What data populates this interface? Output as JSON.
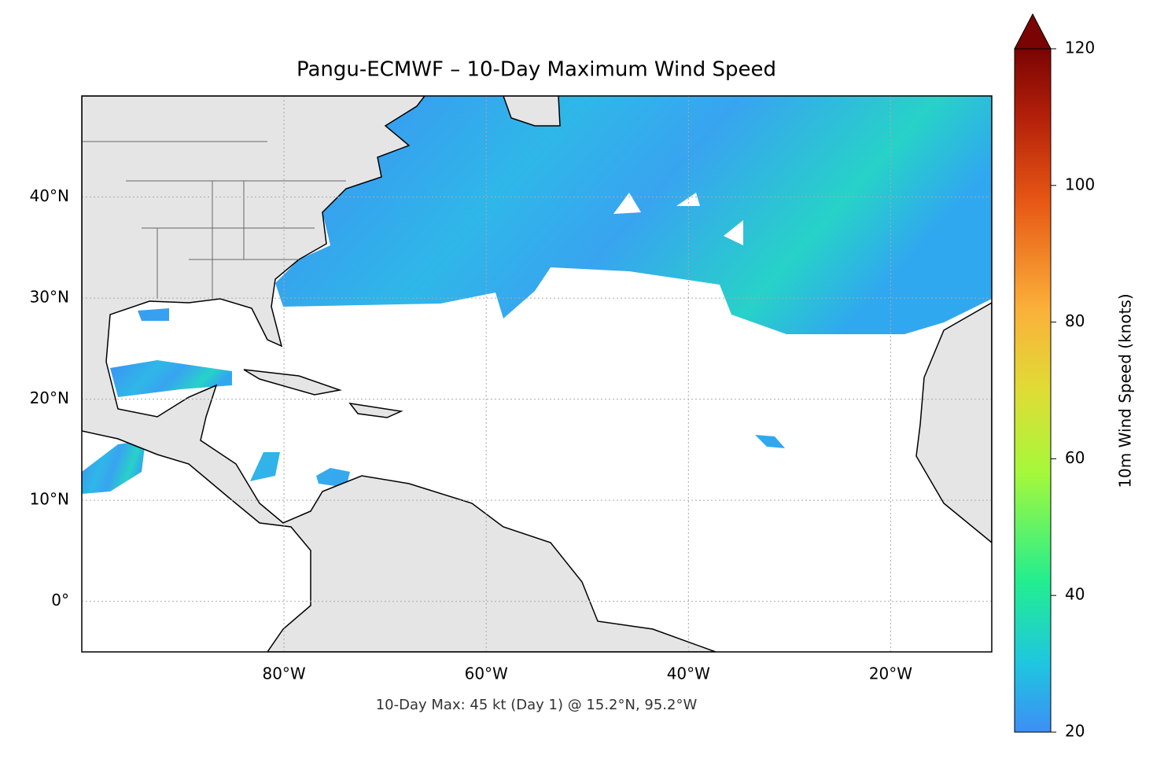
{
  "chart_data": {
    "type": "map",
    "title": "Pangu-ECMWF – 10-Day Maximum Wind Speed",
    "annotation": "10-Day Max: 45 kt (Day 1) @ 15.2°N, 95.2°W",
    "xlim": [
      -100,
      -10
    ],
    "ylim": [
      -5,
      50
    ],
    "xticks": [
      {
        "value": -80,
        "label": "80°W"
      },
      {
        "value": -60,
        "label": "60°W"
      },
      {
        "value": -40,
        "label": "40°W"
      },
      {
        "value": -20,
        "label": "20°W"
      }
    ],
    "yticks": [
      {
        "value": 0,
        "label": "0°"
      },
      {
        "value": 10,
        "label": "10°N"
      },
      {
        "value": 20,
        "label": "20°N"
      },
      {
        "value": 30,
        "label": "30°N"
      },
      {
        "value": 40,
        "label": "40°N"
      }
    ],
    "grid": true,
    "colorbar": {
      "label": "10m Wind Speed (knots)",
      "lim": [
        20,
        120
      ],
      "ticks": [
        20,
        40,
        60,
        80,
        100,
        120
      ],
      "extend": "max"
    }
  }
}
